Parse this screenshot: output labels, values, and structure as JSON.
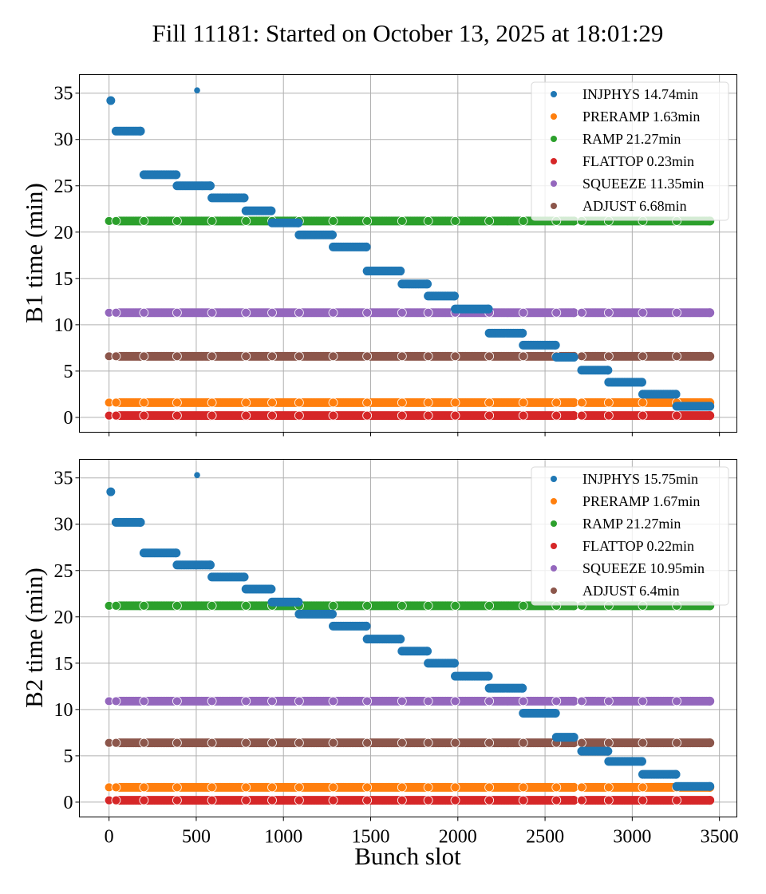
{
  "chart_data": {
    "type": "scatter",
    "title": "Fill 11181: Started on October 13, 2025 at 18:01:29",
    "xlabel": "Bunch slot",
    "xlim": [
      -170,
      3600
    ],
    "xticks": [
      0,
      500,
      1000,
      1500,
      2000,
      2500,
      3000,
      3500
    ],
    "sharex": true,
    "grid": true,
    "legend_position": "top-right",
    "panels": [
      {
        "name": "B1",
        "ylabel": "B1 time (min)",
        "ylim": [
          -1.6,
          37
        ],
        "yticks": [
          0,
          5,
          10,
          15,
          20,
          25,
          30,
          35
        ],
        "series": [
          {
            "name": "INJPHYS",
            "legend": "INJPHYS 14.74min",
            "color": "#1f77b4",
            "points_single": [
              [
                10,
                34.2
              ],
              [
                505,
                35.3
              ]
            ],
            "segments": [
              [
                40,
                180,
                30.9
              ],
              [
                200,
                385,
                26.2
              ],
              [
                390,
                580,
                25.0
              ],
              [
                590,
                775,
                23.7
              ],
              [
                785,
                930,
                22.3
              ],
              [
                935,
                1085,
                21.0
              ],
              [
                1090,
                1280,
                19.7
              ],
              [
                1285,
                1475,
                18.4
              ],
              [
                1480,
                1670,
                15.8
              ],
              [
                1680,
                1825,
                14.4
              ],
              [
                1830,
                1980,
                13.1
              ],
              [
                1985,
                2175,
                11.7
              ],
              [
                2180,
                2370,
                9.1
              ],
              [
                2375,
                2560,
                7.8
              ],
              [
                2565,
                2665,
                6.5
              ],
              [
                2710,
                2860,
                5.1
              ],
              [
                2865,
                3055,
                3.8
              ],
              [
                3060,
                3250,
                2.5
              ],
              [
                3255,
                3445,
                1.2
              ]
            ]
          },
          {
            "name": "PRERAMP",
            "legend": "PRERAMP 1.63min",
            "color": "#ff7f0e",
            "level": 1.6
          },
          {
            "name": "RAMP",
            "legend": "RAMP 21.27min",
            "color": "#2ca02c",
            "level": 21.2
          },
          {
            "name": "FLATTOP",
            "legend": "FLATTOP 0.23min",
            "color": "#d62728",
            "level": 0.2
          },
          {
            "name": "SQUEEZE",
            "legend": "SQUEEZE 11.35min",
            "color": "#9467bd",
            "level": 11.3
          },
          {
            "name": "ADJUST",
            "legend": "ADJUST 6.68min",
            "color": "#8c564b",
            "level": 6.6
          }
        ]
      },
      {
        "name": "B2",
        "ylabel": "B2 time (min)",
        "ylim": [
          -1.6,
          37
        ],
        "yticks": [
          0,
          5,
          10,
          15,
          20,
          25,
          30,
          35
        ],
        "series": [
          {
            "name": "INJPHYS",
            "legend": "INJPHYS 15.75min",
            "color": "#1f77b4",
            "points_single": [
              [
                10,
                33.5
              ],
              [
                505,
                35.3
              ]
            ],
            "segments": [
              [
                40,
                180,
                30.2
              ],
              [
                200,
                385,
                26.9
              ],
              [
                390,
                580,
                25.6
              ],
              [
                590,
                775,
                24.3
              ],
              [
                785,
                930,
                23.0
              ],
              [
                935,
                1085,
                21.6
              ],
              [
                1090,
                1280,
                20.3
              ],
              [
                1285,
                1475,
                19.0
              ],
              [
                1480,
                1670,
                17.6
              ],
              [
                1680,
                1825,
                16.3
              ],
              [
                1830,
                1980,
                15.0
              ],
              [
                1985,
                2175,
                13.6
              ],
              [
                2180,
                2370,
                12.3
              ],
              [
                2375,
                2560,
                9.6
              ],
              [
                2565,
                2665,
                7.0
              ],
              [
                2710,
                2860,
                5.5
              ],
              [
                2865,
                3055,
                4.4
              ],
              [
                3060,
                3250,
                3.0
              ],
              [
                3255,
                3445,
                1.7
              ]
            ]
          },
          {
            "name": "PRERAMP",
            "legend": "PRERAMP 1.67min",
            "color": "#ff7f0e",
            "level": 1.6
          },
          {
            "name": "RAMP",
            "legend": "RAMP 21.27min",
            "color": "#2ca02c",
            "level": 21.2
          },
          {
            "name": "FLATTOP",
            "legend": "FLATTOP 0.22min",
            "color": "#d62728",
            "level": 0.2
          },
          {
            "name": "SQUEEZE",
            "legend": "SQUEEZE 10.95min",
            "color": "#9467bd",
            "level": 10.9
          },
          {
            "name": "ADJUST",
            "legend": "ADJUST 6.4min",
            "color": "#8c564b",
            "level": 6.4
          }
        ]
      }
    ],
    "constant_series_ranges": [
      [
        0,
        2665
      ],
      [
        2710,
        3445
      ]
    ],
    "constant_series_breaks": [
      0,
      40,
      180,
      200,
      385,
      390,
      580,
      590,
      775,
      785,
      930,
      935,
      1085,
      1090,
      1280,
      1285,
      1475,
      1480,
      1670,
      1680,
      1825,
      1830,
      1980,
      1985,
      2175,
      2180,
      2370,
      2375,
      2560,
      2565,
      2665,
      2710,
      2860,
      2865,
      3055,
      3060,
      3250,
      3255,
      3445
    ]
  }
}
